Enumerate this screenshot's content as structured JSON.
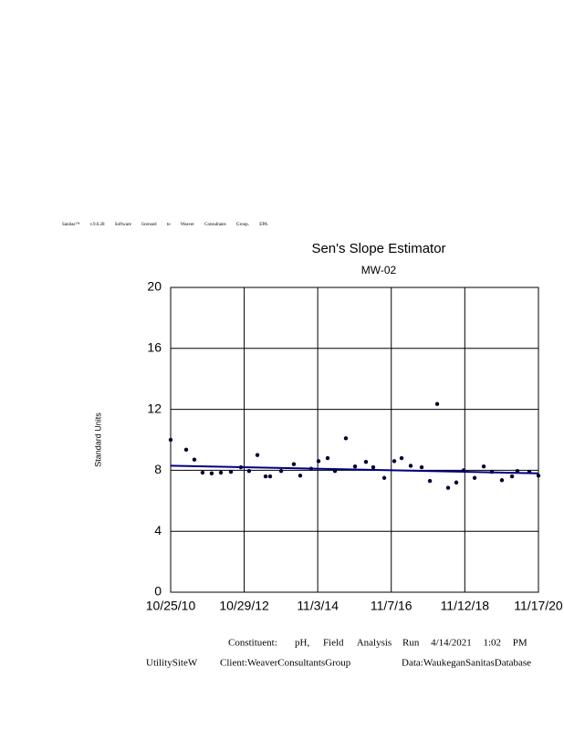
{
  "header": "Sanitas™ v.9.6.28 Software licensed to Weaver Consultants Group. EPA",
  "chart_data": {
    "type": "scatter",
    "title": "Sen's Slope Estimator",
    "subtitle": "MW-02",
    "y_label": "Standard Units",
    "grid": true,
    "ylim": [
      0,
      20
    ],
    "yticks": [
      0,
      4,
      8,
      12,
      16,
      20
    ],
    "xlim": [
      "2010-10-25",
      "2020-11-17"
    ],
    "xticks": [
      {
        "value": "2010-10-25",
        "label": "10/25/10"
      },
      {
        "value": "2012-10-29",
        "label": "10/29/12"
      },
      {
        "value": "2014-11-03",
        "label": "11/3/14"
      },
      {
        "value": "2016-11-07",
        "label": "11/7/16"
      },
      {
        "value": "2018-11-12",
        "label": "11/12/18"
      },
      {
        "value": "2020-11-17",
        "label": "11/17/20"
      }
    ],
    "series": [
      {
        "color": "#000033",
        "x": [
          "2010-10-25",
          "2011-03-29",
          "2011-06-19",
          "2011-09-09",
          "2011-12-09",
          "2012-03-10",
          "2012-06-18",
          "2012-09-26",
          "2012-12-17",
          "2013-03-10",
          "2013-05-31",
          "2013-07-15",
          "2013-11-02",
          "2014-03-09",
          "2014-05-12",
          "2014-08-30",
          "2014-11-11",
          "2015-02-10",
          "2015-04-24",
          "2015-08-11",
          "2015-11-11",
          "2016-02-28",
          "2016-05-11",
          "2016-08-29",
          "2016-12-07",
          "2017-02-18",
          "2017-05-20",
          "2017-09-07",
          "2017-11-28",
          "2018-02-09",
          "2018-05-29",
          "2018-08-19",
          "2018-10-31",
          "2019-02-18",
          "2019-05-20",
          "2019-08-10",
          "2019-11-18",
          "2020-02-27",
          "2020-04-21",
          "2020-08-18",
          "2020-11-17"
        ],
        "values": [
          10.0,
          9.35,
          8.7,
          7.85,
          7.8,
          7.85,
          7.9,
          8.2,
          7.95,
          9.0,
          7.6,
          7.6,
          7.95,
          8.4,
          7.65,
          8.1,
          8.6,
          8.8,
          7.95,
          10.1,
          8.25,
          8.55,
          8.2,
          7.5,
          8.6,
          8.8,
          8.3,
          8.2,
          7.3,
          12.35,
          6.85,
          7.2,
          8.0,
          7.5,
          8.25,
          7.9,
          7.35,
          7.6,
          7.95,
          7.9,
          7.65
        ]
      }
    ],
    "trend": {
      "color": "#000080",
      "x": [
        "2010-10-25",
        "2020-11-17"
      ],
      "values": [
        8.3,
        7.8
      ]
    }
  },
  "footer": {
    "constituent": "Constituent:",
    "parameter": "pH, Field Analysis",
    "run": "Run 4/14/2021 1:02 PM",
    "site": "UtilitySiteW",
    "client": "Client:WeaverConsultantsGroup",
    "database": "Data:WaukeganSanitasDatabase"
  }
}
